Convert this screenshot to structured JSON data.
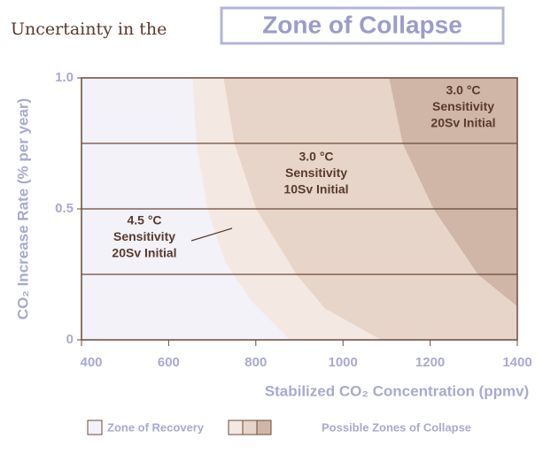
{
  "chart_data": {
    "type": "area",
    "title": "Uncertainty in the",
    "title_highlight": "Zone of Collapse",
    "xlabel": "Stabilized CO₂ Concentration (ppmv)",
    "ylabel": "CO₂ Increase Rate (% per year)",
    "xlim": [
      400,
      1400
    ],
    "ylim": [
      0,
      1
    ],
    "xticks": [
      400,
      600,
      800,
      1000,
      1200,
      1400
    ],
    "yticks": [
      0,
      0.5,
      {
        "value": 1,
        "label": "1.0"
      }
    ],
    "grid_lines": [
      0.25,
      0.5,
      0.75
    ],
    "background_color": "#f3f2f9",
    "series": [
      {
        "color": "#f4e8e2",
        "x": [
          656,
          665,
          690,
          730,
          790,
          880
        ],
        "values": [
          1,
          0.75,
          0.5,
          0.3,
          0.15,
          0
        ]
      },
      {
        "color": "#e7d5c9",
        "x": [
          727,
          752,
          802,
          894,
          960,
          1090
        ],
        "values": [
          1,
          0.75,
          0.5,
          0.25,
          0.12,
          0
        ]
      },
      {
        "color": "#cfb6a6",
        "x": [
          1107,
          1138,
          1209,
          1311,
          1400
        ],
        "values": [
          1,
          0.75,
          0.5,
          0.25,
          0.13
        ]
      }
    ],
    "annotations": [
      {
        "lines": [
          "4.5 °C",
          "Sensitivity",
          "20Sv Initial"
        ]
      },
      {
        "lines": [
          "3.0 °C",
          "Sensitivity",
          "10Sv Initial"
        ]
      },
      {
        "lines": [
          "3.0 °C",
          "Sensitivity",
          "20Sv Initial"
        ]
      }
    ],
    "legend": [
      "Zone of Recovery",
      "Possible Zones of Collapse"
    ]
  }
}
